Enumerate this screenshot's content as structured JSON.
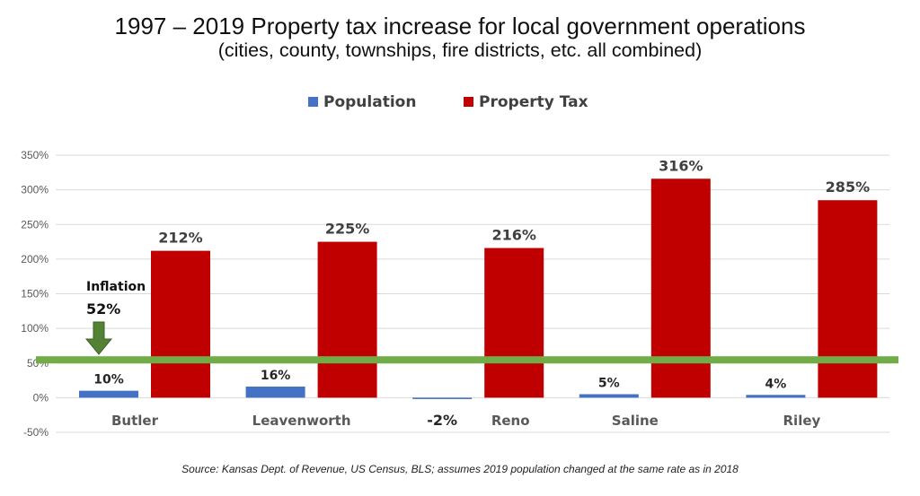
{
  "chart_data": {
    "type": "bar",
    "title": "1997 – 2019 Property tax increase for local government operations",
    "subtitle": "(cities, county, townships, fire districts, etc. all combined)",
    "categories": [
      "Butler",
      "Leavenworth",
      "Reno",
      "Saline",
      "Riley"
    ],
    "series": [
      {
        "name": "Population",
        "color": "#4472C4",
        "values": [
          10,
          16,
          -2,
          5,
          4
        ],
        "labels": [
          "10%",
          "16%",
          "-2%",
          "5%",
          "4%"
        ]
      },
      {
        "name": "Property Tax",
        "color": "#C00000",
        "values": [
          212,
          225,
          216,
          316,
          285
        ],
        "labels": [
          "212%",
          "225%",
          "216%",
          "316%",
          "285%"
        ]
      }
    ],
    "ylim": [
      -50,
      350
    ],
    "yticks": [
      "-50%",
      "0%",
      "50%",
      "100%",
      "150%",
      "200%",
      "250%",
      "300%",
      "350%"
    ],
    "grid": true,
    "legend": "top-center",
    "reference_line": {
      "value": 52,
      "color": "#70AD47",
      "label": "Inflation",
      "value_label": "52%",
      "arrow_color": "#548235"
    },
    "source": "Source: Kansas Dept. of Revenue, US Census, BLS; assumes 2019 population changed at the same rate as in 2018"
  }
}
